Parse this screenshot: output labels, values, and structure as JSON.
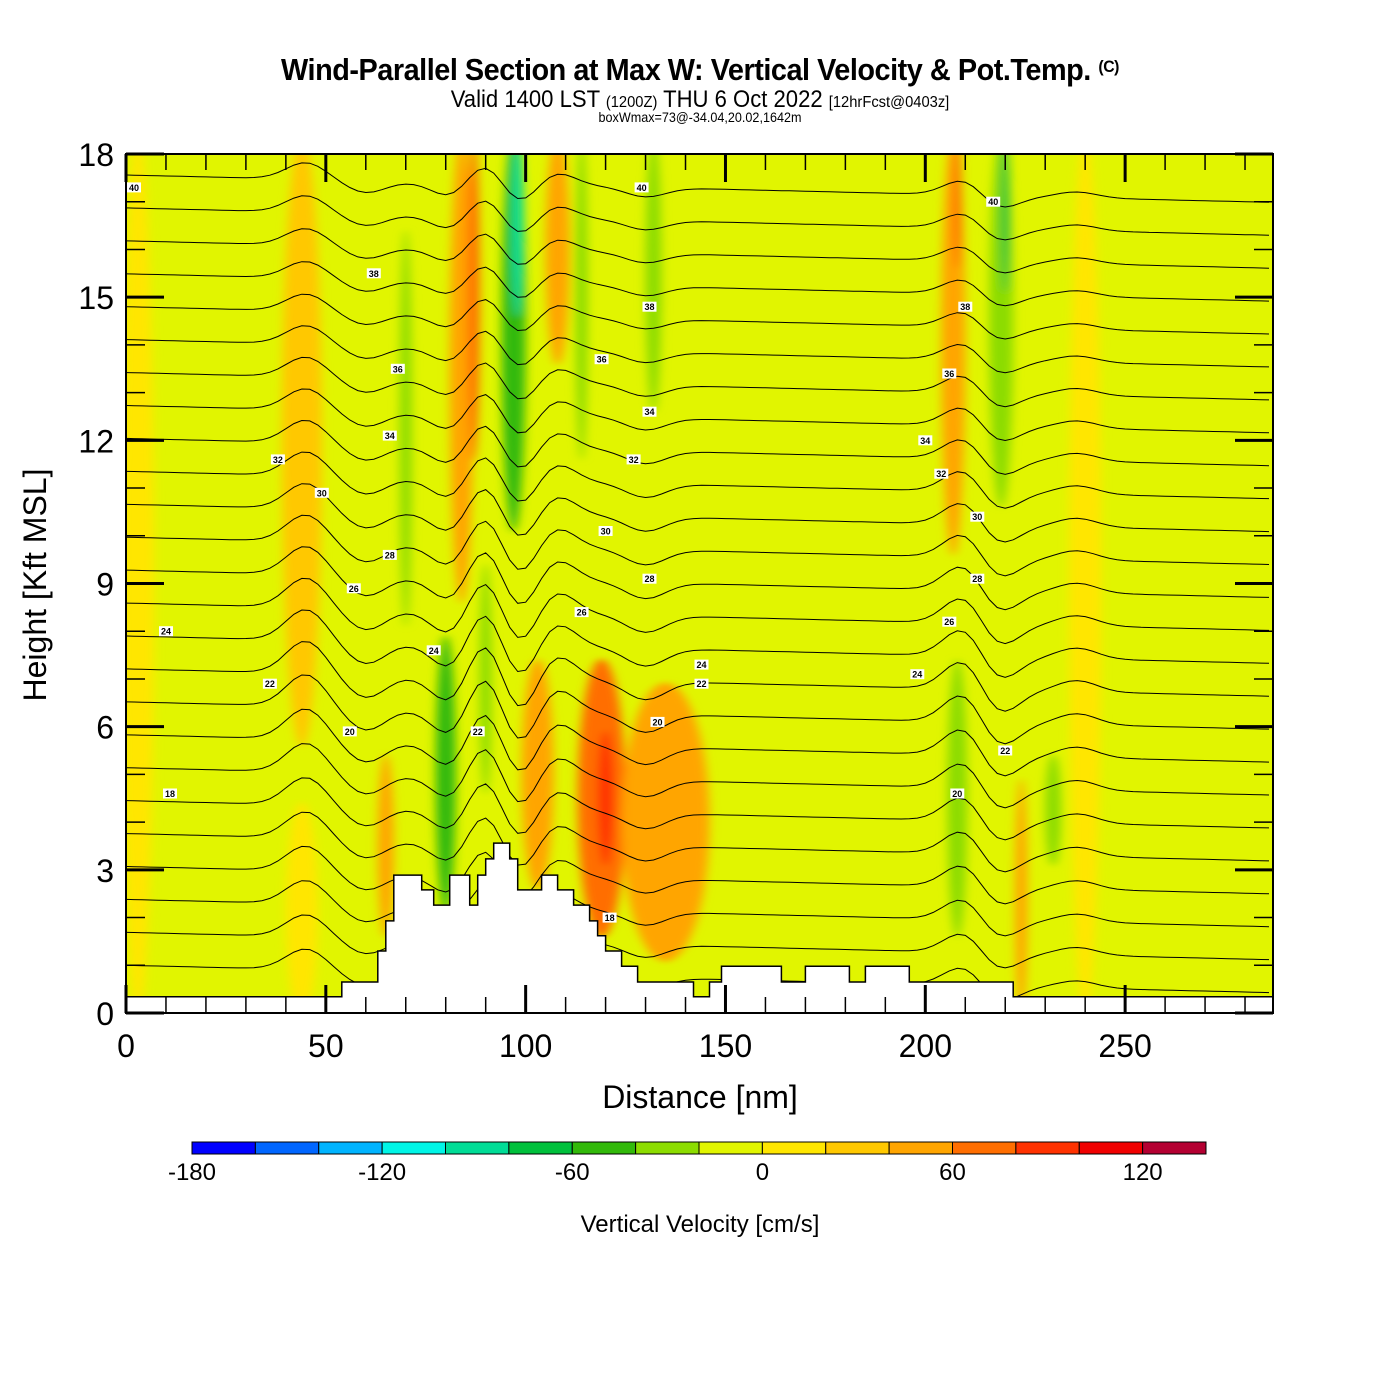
{
  "header": {
    "title": "Wind-Parallel Section at Max W: Vertical Velocity & Pot.Temp.",
    "copyright": "(C)",
    "valid_prefix": "Valid 1400 LST",
    "valid_zulu": "(1200Z)",
    "valid_date": "THU 6 Oct 2022",
    "forecast": "[12hrFcst@0403z]",
    "box_info": "boxWmax=73@-34.04,20.02,1642m"
  },
  "chart_data": {
    "type": "heatmap",
    "title": "Wind-Parallel Section at Max W: Vertical Velocity & Pot.Temp.",
    "xlabel": "Distance [nm]",
    "ylabel": "Height [Kft MSL]",
    "xlim": [
      0,
      287
    ],
    "ylim": [
      0,
      18
    ],
    "x_ticks": [
      0,
      50,
      100,
      150,
      200,
      250
    ],
    "x_tick_labels": [
      "0",
      "50",
      "100",
      "150",
      "200",
      "250"
    ],
    "y_ticks": [
      0,
      3,
      6,
      9,
      12,
      15,
      18
    ],
    "y_tick_labels": [
      "0",
      "3",
      "6",
      "9",
      "12",
      "15",
      "18"
    ],
    "x_minor_step": 10,
    "y_minor_step": 1,
    "colorbar": {
      "label": "Vertical Velocity [cm/s]",
      "levels": [
        -180,
        -160,
        -140,
        -120,
        -100,
        -80,
        -60,
        -40,
        -20,
        0,
        20,
        40,
        60,
        80,
        100,
        120,
        140
      ],
      "tick_values": [
        -180,
        -120,
        -60,
        0,
        60,
        120
      ],
      "tick_labels": [
        "-180",
        "-120",
        "-60",
        "0",
        "60",
        "120"
      ],
      "colors": [
        "#0000ff",
        "#0066ff",
        "#00b4ff",
        "#00f5e6",
        "#00dc96",
        "#00c03c",
        "#32b90a",
        "#8cdc00",
        "#e1f500",
        "#ffe600",
        "#ffc800",
        "#ffa500",
        "#ff6e00",
        "#ff3200",
        "#f00000",
        "#b40032"
      ],
      "position": "bottom"
    },
    "vertical_velocity_bands": [
      {
        "x_center": 3,
        "x_width": 8,
        "y_range": [
          0.3,
          18
        ],
        "value": 10
      },
      {
        "x_center": 44,
        "x_width": 10,
        "y_range": [
          6,
          18
        ],
        "value": 30
      },
      {
        "x_center": 44,
        "x_width": 8,
        "y_range": [
          0.3,
          4
        ],
        "value": 10
      },
      {
        "x_center": 70,
        "x_width": 3,
        "y_range": [
          8.5,
          16
        ],
        "value": -30
      },
      {
        "x_center": 65,
        "x_width": 4,
        "y_range": [
          2,
          5
        ],
        "value": 40
      },
      {
        "x_center": 80,
        "x_width": 5,
        "y_range": [
          2.5,
          7.5
        ],
        "value": -50
      },
      {
        "x_center": 84,
        "x_width": 6,
        "y_range": [
          9,
          18
        ],
        "value": 50
      },
      {
        "x_center": 87,
        "x_width": 3,
        "y_range": [
          12,
          18
        ],
        "value": 70
      },
      {
        "x_center": 90,
        "x_width": 3,
        "y_range": [
          5,
          9
        ],
        "value": -40
      },
      {
        "x_center": 97,
        "x_width": 6,
        "y_range": [
          10.5,
          18
        ],
        "value": -60
      },
      {
        "x_center": 98,
        "x_width": 3,
        "y_range": [
          15,
          18
        ],
        "value": -90
      },
      {
        "x_center": 103,
        "x_width": 8,
        "y_range": [
          3,
          7
        ],
        "value": 50
      },
      {
        "x_center": 108,
        "x_width": 6,
        "y_range": [
          14,
          18
        ],
        "value": 40
      },
      {
        "x_center": 114,
        "x_width": 3,
        "y_range": [
          12,
          18
        ],
        "value": -40
      },
      {
        "x_center": 119,
        "x_width": 12,
        "y_range": [
          2,
          7
        ],
        "value": 60
      },
      {
        "x_center": 120,
        "x_width": 4,
        "y_range": [
          3.5,
          5.5
        ],
        "value": 90
      },
      {
        "x_center": 135,
        "x_width": 22,
        "y_range": [
          1.5,
          6.5
        ],
        "value": 40
      },
      {
        "x_center": 132,
        "x_width": 4,
        "y_range": [
          13,
          18
        ],
        "value": -30
      },
      {
        "x_center": 207,
        "x_width": 6,
        "y_range": [
          10,
          18
        ],
        "value": 50
      },
      {
        "x_center": 208,
        "x_width": 2,
        "y_range": [
          16,
          18
        ],
        "value": 70
      },
      {
        "x_center": 219,
        "x_width": 6,
        "y_range": [
          11,
          18
        ],
        "value": -40
      },
      {
        "x_center": 220,
        "x_width": 2,
        "y_range": [
          15.5,
          18
        ],
        "value": -70
      },
      {
        "x_center": 208,
        "x_width": 5,
        "y_range": [
          2,
          7
        ],
        "value": -30
      },
      {
        "x_center": 224,
        "x_width": 3,
        "y_range": [
          0.3,
          4.5
        ],
        "value": 50
      },
      {
        "x_center": 232,
        "x_width": 4,
        "y_range": [
          3.5,
          5
        ],
        "value": -40
      },
      {
        "x_center": 240,
        "x_width": 8,
        "y_range": [
          0.3,
          18
        ],
        "value": 10
      }
    ],
    "background_value": -10,
    "terrain_kft": [
      [
        0,
        0.34
      ],
      [
        54,
        0.34
      ],
      [
        54,
        0.65
      ],
      [
        63,
        0.65
      ],
      [
        63,
        1.3
      ],
      [
        65,
        1.3
      ],
      [
        65,
        1.93
      ],
      [
        67,
        1.93
      ],
      [
        67,
        2.89
      ],
      [
        74,
        2.89
      ],
      [
        74,
        2.58
      ],
      [
        77,
        2.58
      ],
      [
        77,
        2.26
      ],
      [
        81,
        2.26
      ],
      [
        81,
        2.89
      ],
      [
        86,
        2.89
      ],
      [
        86,
        2.26
      ],
      [
        88,
        2.26
      ],
      [
        88,
        2.89
      ],
      [
        90,
        2.89
      ],
      [
        90,
        3.23
      ],
      [
        92,
        3.23
      ],
      [
        92,
        3.56
      ],
      [
        96,
        3.56
      ],
      [
        96,
        3.23
      ],
      [
        98,
        3.23
      ],
      [
        98,
        2.58
      ],
      [
        104,
        2.58
      ],
      [
        104,
        2.89
      ],
      [
        108,
        2.89
      ],
      [
        108,
        2.58
      ],
      [
        112,
        2.58
      ],
      [
        112,
        2.26
      ],
      [
        116,
        2.26
      ],
      [
        116,
        1.93
      ],
      [
        118,
        1.93
      ],
      [
        118,
        1.62
      ],
      [
        120,
        1.62
      ],
      [
        120,
        1.3
      ],
      [
        124,
        1.3
      ],
      [
        124,
        0.98
      ],
      [
        128,
        0.98
      ],
      [
        128,
        0.65
      ],
      [
        142,
        0.65
      ],
      [
        142,
        0.34
      ],
      [
        146,
        0.34
      ],
      [
        146,
        0.65
      ],
      [
        149,
        0.65
      ],
      [
        149,
        0.98
      ],
      [
        164,
        0.98
      ],
      [
        164,
        0.65
      ],
      [
        170,
        0.65
      ],
      [
        170,
        0.98
      ],
      [
        181,
        0.98
      ],
      [
        181,
        0.65
      ],
      [
        185,
        0.65
      ],
      [
        185,
        0.98
      ],
      [
        196,
        0.98
      ],
      [
        196,
        0.65
      ],
      [
        222,
        0.65
      ],
      [
        222,
        0.34
      ],
      [
        287,
        0.34
      ]
    ],
    "theta_contours": {
      "label": "Pot.Temp.",
      "levels": [
        17,
        18,
        19,
        20,
        21,
        22,
        23,
        24,
        25,
        26,
        27,
        28,
        29,
        30,
        31,
        32,
        33,
        34,
        35,
        36,
        37,
        38,
        39,
        40,
        41
      ],
      "labels": [
        {
          "text": "40",
          "x": 2,
          "y": 17.3
        },
        {
          "text": "40",
          "x": 129,
          "y": 17.3
        },
        {
          "text": "40",
          "x": 217,
          "y": 17.0
        },
        {
          "text": "38",
          "x": 62,
          "y": 15.5
        },
        {
          "text": "38",
          "x": 131,
          "y": 14.8
        },
        {
          "text": "38",
          "x": 210,
          "y": 14.8
        },
        {
          "text": "36",
          "x": 68,
          "y": 13.5
        },
        {
          "text": "36",
          "x": 119,
          "y": 13.7
        },
        {
          "text": "36",
          "x": 206,
          "y": 13.4
        },
        {
          "text": "34",
          "x": 66,
          "y": 12.1
        },
        {
          "text": "34",
          "x": 131,
          "y": 12.6
        },
        {
          "text": "34",
          "x": 200,
          "y": 12.0
        },
        {
          "text": "32",
          "x": 38,
          "y": 11.6
        },
        {
          "text": "32",
          "x": 127,
          "y": 11.6
        },
        {
          "text": "32",
          "x": 204,
          "y": 11.3
        },
        {
          "text": "30",
          "x": 49,
          "y": 10.9
        },
        {
          "text": "30",
          "x": 120,
          "y": 10.1
        },
        {
          "text": "30",
          "x": 213,
          "y": 10.4
        },
        {
          "text": "28",
          "x": 66,
          "y": 9.6
        },
        {
          "text": "28",
          "x": 131,
          "y": 9.1
        },
        {
          "text": "28",
          "x": 213,
          "y": 9.1
        },
        {
          "text": "26",
          "x": 57,
          "y": 8.9
        },
        {
          "text": "26",
          "x": 114,
          "y": 8.4
        },
        {
          "text": "26",
          "x": 206,
          "y": 8.2
        },
        {
          "text": "24",
          "x": 10,
          "y": 8.0
        },
        {
          "text": "24",
          "x": 77,
          "y": 7.6
        },
        {
          "text": "24",
          "x": 144,
          "y": 7.3
        },
        {
          "text": "24",
          "x": 198,
          "y": 7.1
        },
        {
          "text": "22",
          "x": 36,
          "y": 6.9
        },
        {
          "text": "22",
          "x": 144,
          "y": 6.9
        },
        {
          "text": "22",
          "x": 88,
          "y": 5.9
        },
        {
          "text": "22",
          "x": 220,
          "y": 5.5
        },
        {
          "text": "20",
          "x": 56,
          "y": 5.9
        },
        {
          "text": "20",
          "x": 133,
          "y": 6.1
        },
        {
          "text": "20",
          "x": 208,
          "y": 4.6
        },
        {
          "text": "18",
          "x": 11,
          "y": 4.6
        },
        {
          "text": "18",
          "x": 121,
          "y": 2.0
        }
      ]
    }
  }
}
